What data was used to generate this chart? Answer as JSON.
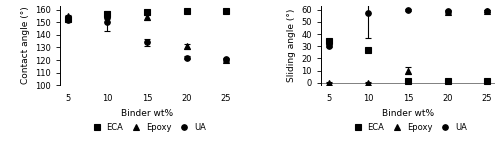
{
  "x": [
    5,
    10,
    15,
    20,
    25
  ],
  "left": {
    "ylabel": "Contact angle (°)",
    "xlabel": "Binder wt%",
    "ylim": [
      100,
      163
    ],
    "yticks": [
      100,
      110,
      120,
      130,
      140,
      150,
      160
    ],
    "ECA_y": [
      153,
      157,
      158,
      159,
      159
    ],
    "ECA_yerr": [
      1,
      1,
      1,
      1,
      1
    ],
    "Epoxy_y": [
      155,
      156,
      154,
      131,
      120
    ],
    "Epoxy_yerr": [
      1,
      3,
      2,
      2,
      1
    ],
    "UA_y": [
      152,
      150,
      134,
      122,
      121
    ],
    "UA_yerr": [
      1,
      7,
      3,
      1,
      1
    ]
  },
  "right": {
    "ylabel": "Sliding angle (°)",
    "xlabel": "Binder wt%",
    "ylim": [
      -2,
      63
    ],
    "yticks": [
      0,
      10,
      20,
      30,
      40,
      50,
      60
    ],
    "ECA_y": [
      34,
      27,
      1,
      1,
      1
    ],
    "ECA_yerr": [
      1,
      1,
      0.5,
      0.5,
      0.5
    ],
    "Epoxy_y": [
      0,
      0,
      10,
      58,
      59
    ],
    "Epoxy_yerr": [
      0.5,
      0.5,
      3,
      1,
      1
    ],
    "UA_y": [
      30,
      57,
      60,
      59,
      59
    ],
    "UA_yerr": [
      1,
      20,
      1,
      1,
      1
    ]
  },
  "marker_ECA": "s",
  "marker_Epoxy": "^",
  "marker_UA": "o",
  "color": "black",
  "markersize": 4,
  "capsize": 2,
  "legend_labels": [
    "ECA",
    "Epoxy",
    "UA"
  ]
}
